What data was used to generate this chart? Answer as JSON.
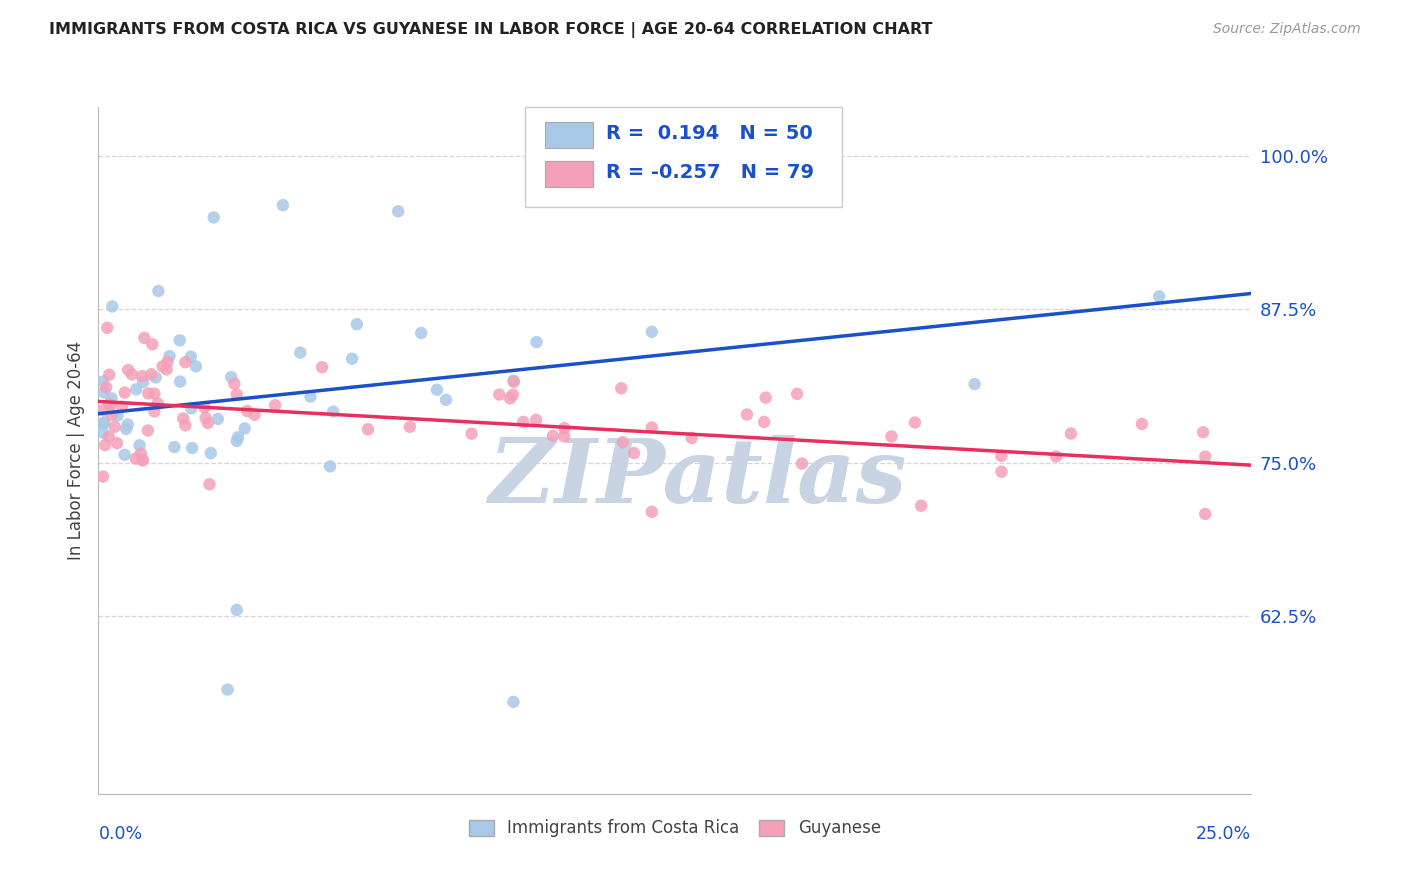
{
  "title": "IMMIGRANTS FROM COSTA RICA VS GUYANESE IN LABOR FORCE | AGE 20-64 CORRELATION CHART",
  "source": "Source: ZipAtlas.com",
  "ylabel": "In Labor Force | Age 20-64",
  "yticks": [
    0.625,
    0.75,
    0.875,
    1.0
  ],
  "ytick_labels": [
    "62.5%",
    "75.0%",
    "87.5%",
    "100.0%"
  ],
  "xmin": 0.0,
  "xmax": 0.25,
  "ymin": 0.48,
  "ymax": 1.04,
  "legend1_r": "0.194",
  "legend1_n": "50",
  "legend2_r": "-0.257",
  "legend2_n": "79",
  "series1_color": "#a8c8e8",
  "series2_color": "#f4a0b8",
  "trend1_color": "#1a50c8",
  "trend2_color": "#e83060",
  "grid_color": "#cccccc",
  "watermark_color": "#c8d4e4",
  "watermark": "ZIPatlas",
  "title_color": "#222222",
  "source_color": "#999999",
  "label_color": "#444444",
  "trend1_y0": 0.79,
  "trend1_y1": 0.888,
  "trend2_y0": 0.8,
  "trend2_y1": 0.748
}
